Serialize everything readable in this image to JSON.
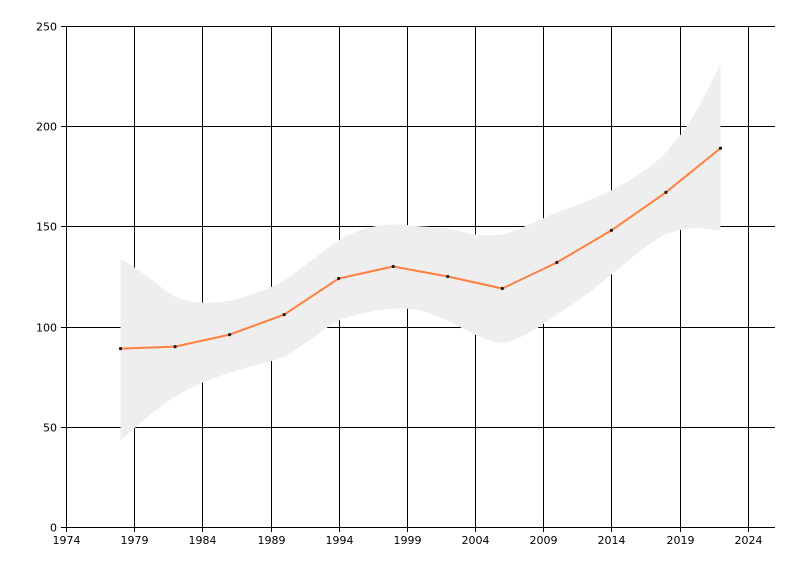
{
  "chart_data": {
    "type": "line",
    "title": "",
    "xlabel": "",
    "ylabel": "",
    "xlim": [
      1974,
      2026
    ],
    "ylim": [
      0,
      250
    ],
    "x_ticks": [
      "1974",
      "1979",
      "1984",
      "1989",
      "1994",
      "1999",
      "2004",
      "2009",
      "2014",
      "2019",
      "2024"
    ],
    "y_ticks": [
      "0",
      "50",
      "100",
      "150",
      "200",
      "250"
    ],
    "grid": true,
    "colors": {
      "line": "#ff7f3f",
      "band": "#eeeeee",
      "marker": "#1a1a1a"
    },
    "series": [
      {
        "x": [
          1978,
          1982,
          1986,
          1990,
          1994,
          1998,
          2002,
          2006,
          2010,
          2014,
          2018,
          2022
        ],
        "values": [
          89,
          90,
          96,
          106,
          124,
          130,
          125,
          119,
          132,
          148,
          167,
          189
        ]
      }
    ],
    "band": {
      "x": [
        1978,
        1980,
        1982,
        1984,
        1986,
        1988,
        1990,
        1992,
        1994,
        1996,
        1998,
        2000,
        2002,
        2004,
        2006,
        2008,
        2010,
        2012,
        2014,
        2016,
        2018,
        2020,
        2022
      ],
      "upper": [
        134,
        125,
        115,
        112,
        113,
        117,
        123,
        133,
        143,
        149,
        151,
        150,
        149,
        146,
        146,
        151,
        157,
        162,
        168,
        176,
        187,
        205,
        231
      ],
      "lower": [
        43,
        55,
        65,
        72,
        77,
        81,
        85,
        94,
        103,
        107,
        109,
        108,
        103,
        96,
        92,
        97,
        106,
        115,
        126,
        137,
        146,
        149,
        148
      ]
    }
  }
}
